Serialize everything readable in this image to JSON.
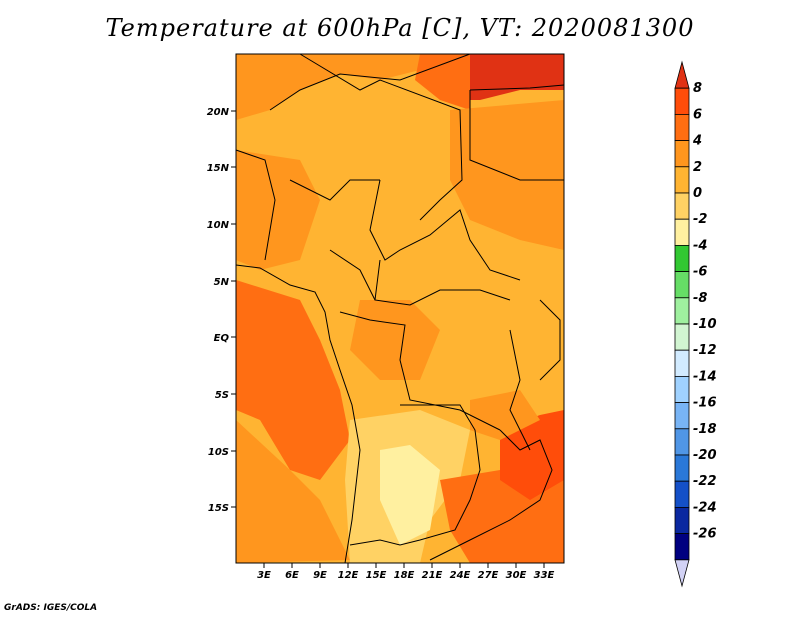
{
  "title": "Temperature at 600hPa [C], VT: 2020081300",
  "credit": "GrADS: IGES/COLA",
  "map": {
    "region": "Central Africa",
    "lat_labels": [
      "20N",
      "15N",
      "10N",
      "5N",
      "EQ",
      "5S",
      "10S",
      "15S"
    ],
    "lon_labels": [
      "3E",
      "6E",
      "9E",
      "12E",
      "15E",
      "18E",
      "21E",
      "24E",
      "27E",
      "30E",
      "33E"
    ]
  },
  "colorbar": {
    "labels": [
      "8",
      "6",
      "4",
      "2",
      "0",
      "-2",
      "-4",
      "-6",
      "-8",
      "-10",
      "-12",
      "-14",
      "-16",
      "-18",
      "-20",
      "-22",
      "-24",
      "-26"
    ],
    "colors": [
      "#e03214",
      "#ff4d0a",
      "#ff6e12",
      "#ff961e",
      "#ffb432",
      "#ffd264",
      "#fff0a0",
      "#32c832",
      "#66dd66",
      "#9ff09f",
      "#d2f5d2",
      "#d2ebff",
      "#a0d2ff",
      "#78b4f5",
      "#5096e6",
      "#2a78d8",
      "#1450c8",
      "#0a28a0",
      "#000080",
      "#d2d2f5"
    ]
  }
}
